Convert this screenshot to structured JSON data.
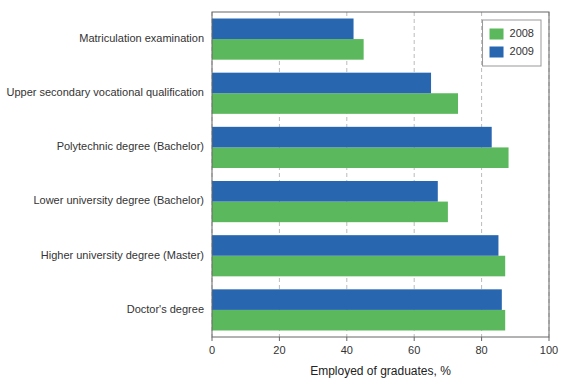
{
  "chart_data": {
    "type": "bar",
    "orientation": "horizontal",
    "categories": [
      "Matriculation examination",
      "Upper secondary vocational qualification",
      "Polytechnic degree (Bachelor)",
      "Lower university degree (Bachelor)",
      "Higher university degree (Master)",
      "Doctor's degree"
    ],
    "series": [
      {
        "name": "2008",
        "color": "#5cb85c",
        "values": [
          45,
          73,
          88,
          70,
          87,
          87
        ]
      },
      {
        "name": "2009",
        "color": "#2866b0",
        "values": [
          42,
          65,
          83,
          67,
          85,
          86
        ]
      }
    ],
    "xlabel": "Employed of graduates, %",
    "xlim": [
      0,
      100
    ],
    "xticks": [
      0,
      20,
      40,
      60,
      80,
      100
    ],
    "grid": true,
    "legend": "upper right"
  }
}
